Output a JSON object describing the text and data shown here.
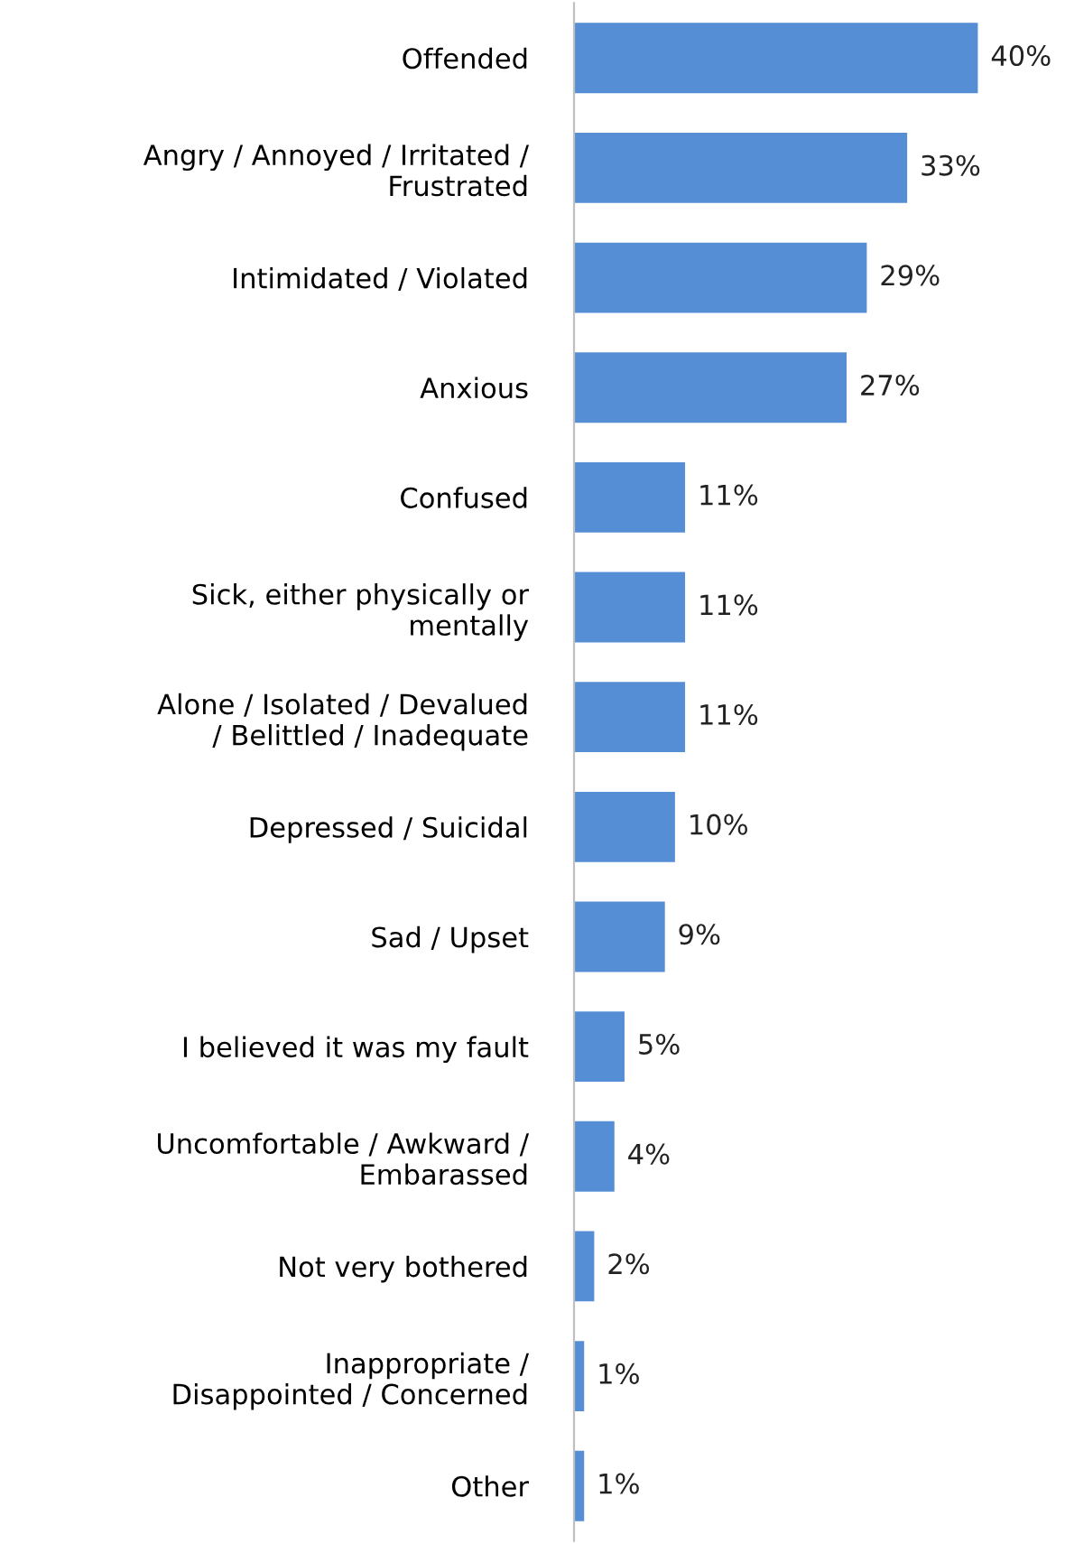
{
  "chart_data": {
    "type": "bar",
    "orientation": "horizontal",
    "categories": [
      "Offended",
      "Angry / Annoyed / Irritated /\nFrustrated",
      "Intimidated / Violated",
      "Anxious",
      "Confused",
      "Sick, either physically or\nmentally",
      "Alone / Isolated / Devalued\n/ Belittled / Inadequate",
      "Depressed / Suicidal",
      "Sad / Upset",
      "I believed it was my fault",
      "Uncomfortable / Awkward /\nEmbarassed",
      "Not very bothered",
      "Inappropriate /\nDisappointed / Concerned",
      "Other"
    ],
    "values": [
      40,
      33,
      29,
      27,
      11,
      11,
      11,
      10,
      9,
      5,
      4,
      2,
      1,
      1
    ],
    "value_labels": [
      "40%",
      "33%",
      "29%",
      "27%",
      "11%",
      "11%",
      "11%",
      "10%",
      "9%",
      "5%",
      "4%",
      "2%",
      "1%",
      "1%"
    ],
    "color": "#558ed5",
    "tick_labels": "y",
    "grid": false,
    "legend": false
  }
}
